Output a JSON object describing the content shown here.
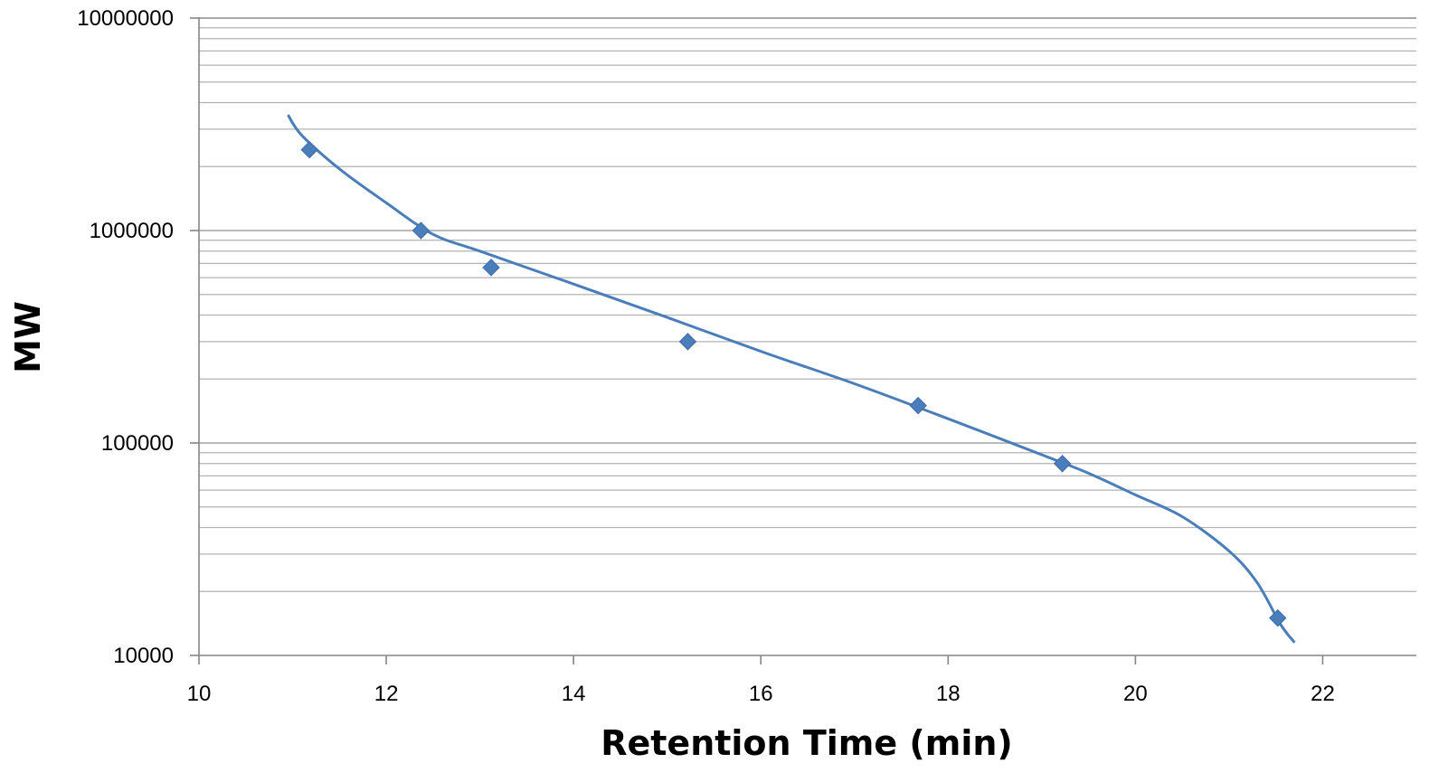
{
  "chart_data": {
    "type": "scatter",
    "title": "",
    "xlabel": "Retention Time (min)",
    "ylabel": "MW",
    "xlim": [
      10,
      23
    ],
    "ylim": [
      10000,
      10000000
    ],
    "x_scale": "linear",
    "y_scale": "log",
    "x_ticks": [
      10,
      12,
      14,
      16,
      18,
      20,
      22
    ],
    "x_tick_labels": [
      "10",
      "12",
      "14",
      "16",
      "18",
      "20",
      "22"
    ],
    "y_ticks": [
      10000,
      100000,
      1000000,
      10000000
    ],
    "y_tick_labels": [
      "10000",
      "100000",
      "1000000",
      "10000000"
    ],
    "grid": "horizontal major and minor",
    "legend": "none",
    "series": [
      {
        "marker": "diamond",
        "color": "#4a7ebb",
        "points": [
          {
            "x": 11.18,
            "y": 2400000
          },
          {
            "x": 12.37,
            "y": 1000000
          },
          {
            "x": 13.12,
            "y": 670000
          },
          {
            "x": 15.22,
            "y": 300000
          },
          {
            "x": 17.68,
            "y": 150000
          },
          {
            "x": 19.22,
            "y": 80000
          },
          {
            "x": 21.52,
            "y": 15000
          }
        ]
      },
      {
        "type": "line",
        "style": "trendline",
        "color": "#4a7ebb",
        "points": [
          {
            "x": 10.95,
            "y": 3500000
          },
          {
            "x": 11.1,
            "y": 2800000
          },
          {
            "x": 11.5,
            "y": 1950000
          },
          {
            "x": 12.0,
            "y": 1350000
          },
          {
            "x": 12.5,
            "y": 960000
          },
          {
            "x": 13.0,
            "y": 800000
          },
          {
            "x": 14.0,
            "y": 560000
          },
          {
            "x": 15.0,
            "y": 390000
          },
          {
            "x": 16.0,
            "y": 270000
          },
          {
            "x": 17.0,
            "y": 190000
          },
          {
            "x": 18.0,
            "y": 130000
          },
          {
            "x": 19.0,
            "y": 88000
          },
          {
            "x": 19.5,
            "y": 72000
          },
          {
            "x": 20.0,
            "y": 57000
          },
          {
            "x": 20.5,
            "y": 45000
          },
          {
            "x": 21.0,
            "y": 31000
          },
          {
            "x": 21.3,
            "y": 22000
          },
          {
            "x": 21.55,
            "y": 14000
          },
          {
            "x": 21.7,
            "y": 11500
          }
        ]
      }
    ]
  }
}
